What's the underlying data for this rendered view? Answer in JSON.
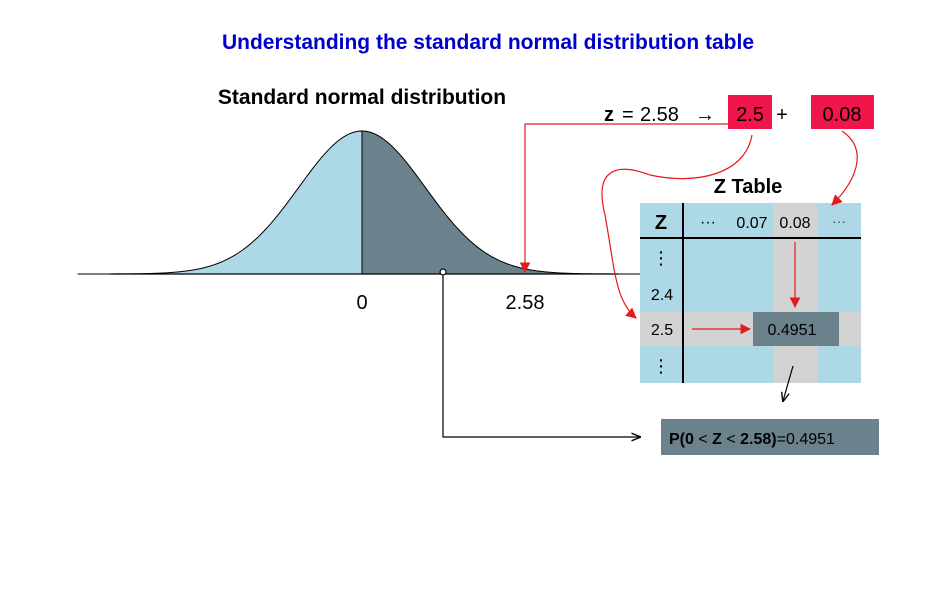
{
  "page_title": "Understanding the standard normal distribution table",
  "curve": {
    "title": "Standard normal distribution",
    "tick_zero": "0",
    "tick_z": "2.58",
    "z_value": 2.58,
    "x_range": [
      -4.5,
      4.5
    ],
    "left_fill": "#add8e6",
    "right_fill": "#6b818b"
  },
  "equation": {
    "z_symbol": "z",
    "equals": "=",
    "z_value": "2.58",
    "arrow": "→",
    "part_row": "2.5",
    "plus": "+",
    "part_col": "0.08",
    "highlight_color": "#f0154a"
  },
  "ztable": {
    "title": "Z Table",
    "header_z": "Z",
    "header_dots": "···",
    "col_prev": "0.07",
    "col_sel": "0.08",
    "col_more": "···",
    "row_dots_top": "⋮",
    "row_24": "2.4",
    "row_25": "2.5",
    "row_dots_bottom": "⋮",
    "cell_value": "0.4951",
    "table_bg": "#add8e6",
    "highlight_bg": "#d3d3d3",
    "cell_bg": "#6b818b"
  },
  "result": {
    "text_p_open": "P(0 ",
    "lt1": "<",
    "z": " Z ",
    "lt2": "<",
    "text_close": " 2.58)",
    "equals_value": "=0.4951",
    "bg": "#6b818b"
  }
}
